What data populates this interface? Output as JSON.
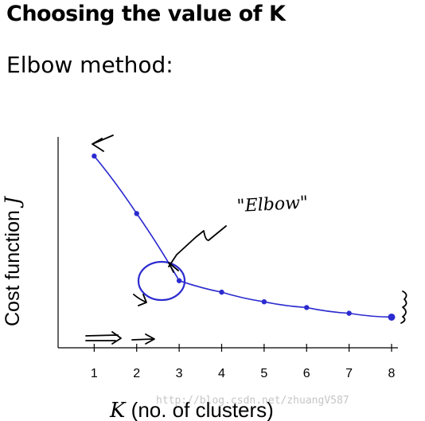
{
  "header": {
    "title": "Choosing the value of K",
    "subtitle": "Elbow method:"
  },
  "chart_data": {
    "type": "line",
    "xlabel_var": "K",
    "xlabel_rest": " (no. of clusters)",
    "ylabel_text": "Cost function ",
    "ylabel_var": "J",
    "categories": [
      "1",
      "2",
      "3",
      "4",
      "5",
      "6",
      "7",
      "8"
    ],
    "x": [
      1,
      2,
      3,
      4,
      5,
      6,
      7,
      8
    ],
    "series": [
      {
        "values": [
          100,
          70,
          35,
          29,
          24,
          21,
          18,
          16
        ]
      }
    ],
    "ylim": [
      0,
      110
    ],
    "xlim": [
      0.15,
      8.15
    ],
    "grid": false,
    "color": "#2b2bd0",
    "annotations": {
      "elbow_label": "\"Elbow\""
    }
  },
  "watermark": "http://blog.csdn.net/zhuangV587"
}
